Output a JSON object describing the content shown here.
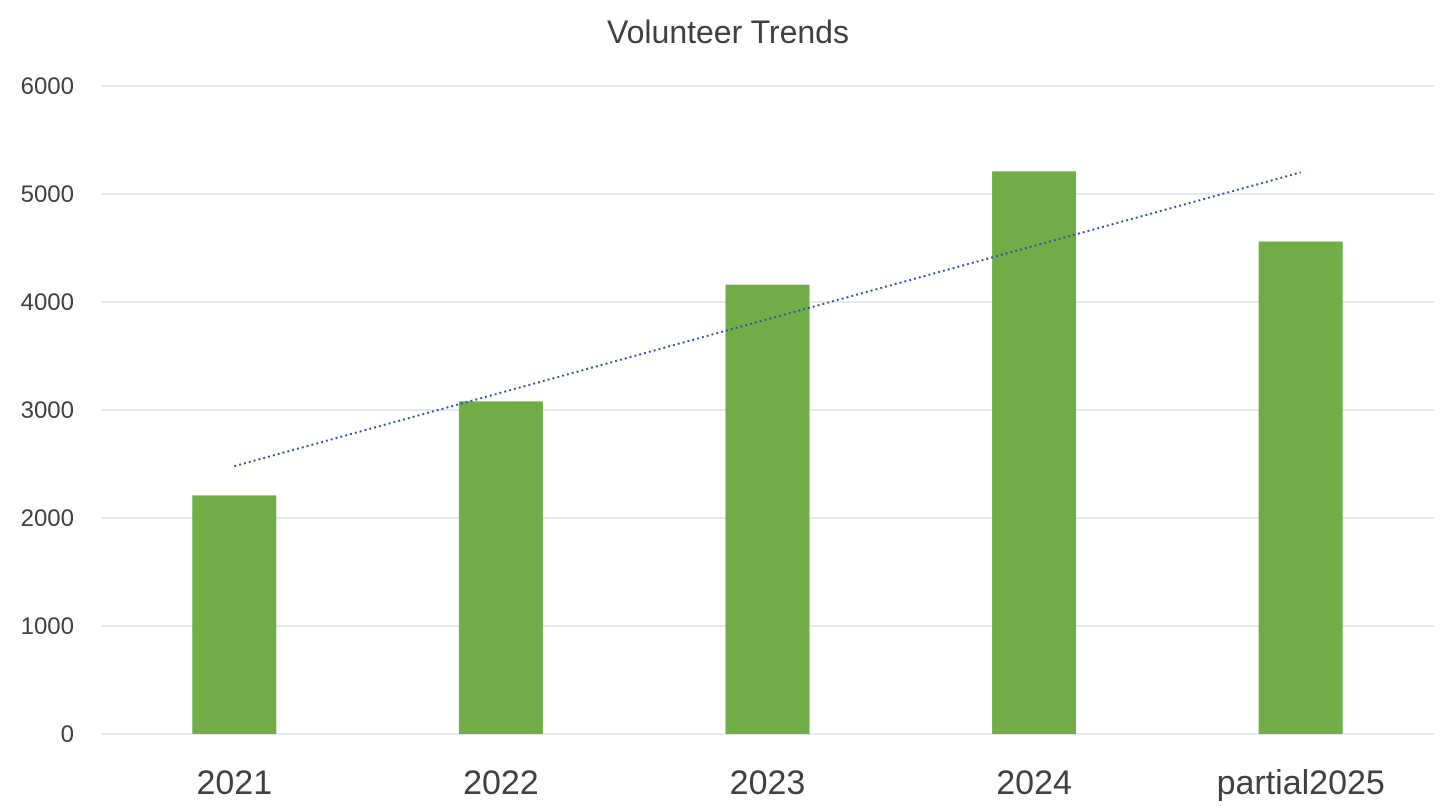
{
  "chart_data": {
    "type": "bar",
    "title": "Volunteer Trends",
    "categories": [
      "2021",
      "2022",
      "2023",
      "2024",
      "partial2025"
    ],
    "values": [
      2210,
      3080,
      4160,
      5210,
      4560
    ],
    "ylim": [
      0,
      6000
    ],
    "yticks": [
      "0",
      "1000",
      "2000",
      "3000",
      "4000",
      "5000",
      "6000"
    ],
    "grid": true,
    "legend": "none",
    "trendline": {
      "type": "linear",
      "style": "dotted",
      "start": 2480,
      "end": 5200
    },
    "colors": {
      "bar": "#70AD47",
      "trendline": "#2F4FA0",
      "grid": "#D9D9D9",
      "text": "#404040"
    }
  }
}
